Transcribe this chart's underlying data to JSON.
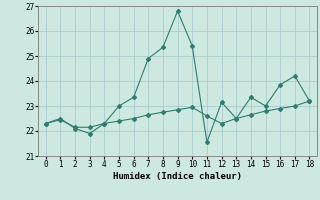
{
  "xlabel": "Humidex (Indice chaleur)",
  "xlim": [
    -0.5,
    18.5
  ],
  "ylim": [
    21,
    27
  ],
  "yticks": [
    21,
    22,
    23,
    24,
    25,
    26,
    27
  ],
  "xticks": [
    0,
    1,
    2,
    3,
    4,
    5,
    6,
    7,
    8,
    9,
    10,
    11,
    12,
    13,
    14,
    15,
    16,
    17,
    18
  ],
  "background_color": "#cce8e0",
  "grid_color": "#aacccc",
  "line_color": "#2e7d6e",
  "series1_x": [
    0,
    1,
    2,
    3,
    4,
    5,
    6,
    7,
    8,
    9,
    10,
    11,
    12,
    13,
    14,
    15,
    16,
    17,
    18
  ],
  "series1_y": [
    22.3,
    22.5,
    22.1,
    21.9,
    22.3,
    23.0,
    23.35,
    24.9,
    25.35,
    26.8,
    25.4,
    21.55,
    23.15,
    22.5,
    23.35,
    23.0,
    23.85,
    24.2,
    23.2
  ],
  "series2_x": [
    0,
    1,
    2,
    3,
    4,
    5,
    6,
    7,
    8,
    9,
    10,
    11,
    12,
    13,
    14,
    15,
    16,
    17,
    18
  ],
  "series2_y": [
    22.3,
    22.45,
    22.15,
    22.15,
    22.3,
    22.4,
    22.5,
    22.65,
    22.75,
    22.85,
    22.95,
    22.6,
    22.3,
    22.5,
    22.65,
    22.8,
    22.9,
    23.0,
    23.2
  ]
}
